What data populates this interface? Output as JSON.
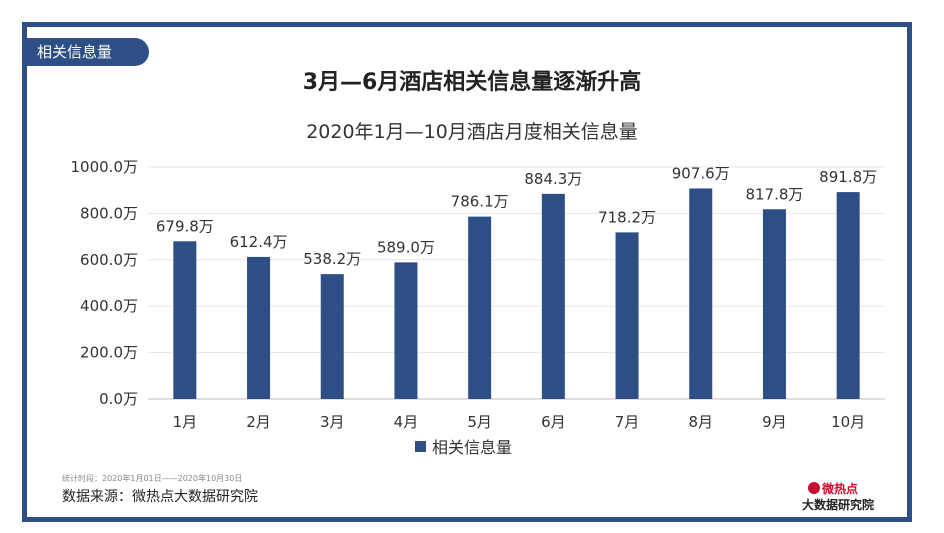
{
  "tag": "相关信息量",
  "title": "3月—6月酒店相关信息量逐渐升高",
  "subtitle": "2020年1月—10月酒店月度相关信息量",
  "legend_label": "相关信息量",
  "note": "统计时段：2020年1月01日——2020年10月30日",
  "source": "数据来源：微热点大数据研究院",
  "logo": {
    "top": "微热点",
    "bottom": "大数据研究院"
  },
  "colors": {
    "bar": "#2d4f86",
    "frame": "#2d4f86"
  },
  "chart_data": {
    "type": "bar",
    "categories": [
      "1月",
      "2月",
      "3月",
      "4月",
      "5月",
      "6月",
      "7月",
      "8月",
      "9月",
      "10月"
    ],
    "series": [
      {
        "name": "相关信息量",
        "values": [
          679.8,
          612.4,
          538.2,
          589.0,
          786.1,
          884.3,
          718.2,
          907.6,
          817.8,
          891.8
        ],
        "data_labels": [
          "679.8万",
          "612.4万",
          "538.2万",
          "589.0万",
          "786.1万",
          "884.3万",
          "718.2万",
          "907.6万",
          "817.8万",
          "891.8万"
        ]
      }
    ],
    "ylim": [
      0,
      1000
    ],
    "yticks": [
      "0.0万",
      "200.0万",
      "400.0万",
      "600.0万",
      "800.0万",
      "1000.0万"
    ],
    "grid": true,
    "legend_position": "bottom"
  }
}
